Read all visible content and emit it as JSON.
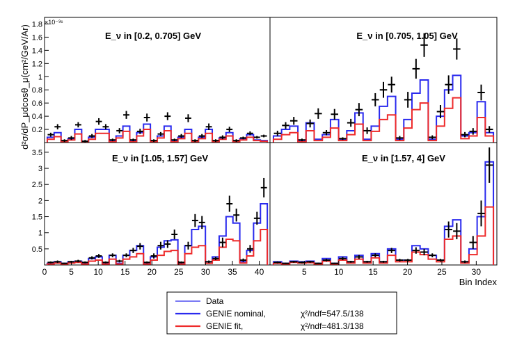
{
  "colors": {
    "data": "#000000",
    "nominal": "#2a2aee",
    "fit": "#ee2a2a",
    "frame": "#000000"
  },
  "figure": {
    "y_axis_label": "d²σ/dP_μdcosθ_μ(cm²/GeV/Ar)",
    "y_exponent_label": "×10⁻³⁶",
    "x_axis_label": "Bin Index"
  },
  "legend": {
    "data_label": "Data",
    "nominal_label": "GENIE nominal,",
    "nominal_chi2": "χ²/ndf=547.5/138",
    "fit_label": "GENIE fit,",
    "fit_chi2": "χ²/ndf=481.3/138"
  },
  "chart_data": [
    {
      "type": "step",
      "title": "E_ν in [0.2, 0.705] GeV",
      "xlim": [
        0,
        41
      ],
      "ylim": [
        0,
        1.9
      ],
      "yticks": [
        0.2,
        0.4,
        0.6,
        0.8,
        1.0,
        1.2,
        1.4,
        1.6,
        1.8
      ],
      "ytick_labels": [
        "0.2",
        "0.4",
        "0.6",
        "0.8",
        "1",
        "1.2",
        "1.4",
        "1.6",
        "1.8"
      ],
      "xticks": [],
      "xtick_labels": [],
      "nominal": [
        0.08,
        0.15,
        0.02,
        0.06,
        0.2,
        0.02,
        0.08,
        0.2,
        0.2,
        0.02,
        0.1,
        0.25,
        0.02,
        0.15,
        0.28,
        0.02,
        0.1,
        0.25,
        0.02,
        0.08,
        0.2,
        0.02,
        0.08,
        0.2,
        0.02,
        0.07,
        0.15,
        0.02,
        0.06,
        0.12,
        0.04,
        0.03
      ],
      "fit": [
        0.05,
        0.09,
        0.01,
        0.04,
        0.13,
        0.01,
        0.05,
        0.14,
        0.14,
        0.01,
        0.07,
        0.17,
        0.01,
        0.1,
        0.2,
        0.01,
        0.07,
        0.18,
        0.01,
        0.06,
        0.14,
        0.01,
        0.06,
        0.14,
        0.01,
        0.05,
        0.1,
        0.01,
        0.04,
        0.08,
        0.03,
        0.02
      ],
      "data": [
        0.12,
        0.24,
        0.03,
        0.07,
        0.27,
        0.02,
        0.1,
        0.32,
        0.24,
        0.04,
        0.18,
        0.42,
        0.04,
        0.17,
        0.38,
        0.03,
        0.13,
        0.4,
        0.04,
        0.1,
        0.37,
        0.03,
        0.1,
        0.24,
        0.03,
        0.08,
        0.2,
        0.03,
        0.07,
        0.14,
        0.08,
        0.1
      ],
      "errors": [
        0.03,
        0.04,
        0.02,
        0.03,
        0.04,
        0.02,
        0.03,
        0.05,
        0.04,
        0.02,
        0.04,
        0.06,
        0.02,
        0.04,
        0.06,
        0.02,
        0.03,
        0.06,
        0.02,
        0.03,
        0.06,
        0.02,
        0.03,
        0.05,
        0.02,
        0.03,
        0.04,
        0.02,
        0.02,
        0.03,
        0.02,
        0.02
      ]
    },
    {
      "type": "step",
      "title": "E_ν in [0.705, 1.05] GeV",
      "xlim": [
        0,
        33
      ],
      "ylim": [
        0,
        1.9
      ],
      "yticks": [],
      "ytick_labels": [],
      "xticks": [],
      "xtick_labels": [],
      "nominal": [
        0.1,
        0.2,
        0.25,
        0.02,
        0.3,
        0.05,
        0.12,
        0.35,
        0.05,
        0.18,
        0.45,
        0.05,
        0.25,
        0.55,
        0.7,
        0.05,
        0.35,
        0.75,
        0.95,
        0.05,
        0.4,
        0.8,
        1.02,
        0.1,
        0.15,
        0.62,
        0.15
      ],
      "fit": [
        0.05,
        0.12,
        0.15,
        0.01,
        0.18,
        0.03,
        0.08,
        0.22,
        0.03,
        0.12,
        0.28,
        0.03,
        0.17,
        0.35,
        0.42,
        0.03,
        0.22,
        0.5,
        0.6,
        0.03,
        0.25,
        0.52,
        0.68,
        0.06,
        0.1,
        0.38,
        0.1
      ],
      "data": [
        0.14,
        0.26,
        0.33,
        0.04,
        0.29,
        0.44,
        0.15,
        0.43,
        0.06,
        0.3,
        0.5,
        0.18,
        0.65,
        0.8,
        0.88,
        0.07,
        0.65,
        1.12,
        1.48,
        0.08,
        0.47,
        0.88,
        1.42,
        0.12,
        0.17,
        0.76,
        0.2
      ],
      "errors": [
        0.04,
        0.05,
        0.06,
        0.02,
        0.06,
        0.08,
        0.04,
        0.08,
        0.02,
        0.06,
        0.1,
        0.05,
        0.1,
        0.12,
        0.12,
        0.03,
        0.12,
        0.15,
        0.18,
        0.03,
        0.1,
        0.14,
        0.16,
        0.04,
        0.05,
        0.12,
        0.05
      ]
    },
    {
      "type": "step",
      "title": "E_ν in [1.05, 1.57] GeV",
      "xlim": [
        0,
        42
      ],
      "ylim": [
        0,
        3.8
      ],
      "yticks": [
        0.5,
        1.0,
        1.5,
        2.0,
        2.5,
        3.0,
        3.5
      ],
      "ytick_labels": [
        "0.5",
        "1",
        "1.5",
        "2",
        "2.5",
        "3",
        "3.5"
      ],
      "xticks": [
        0,
        5,
        10,
        15,
        20,
        25,
        30,
        35,
        40
      ],
      "xtick_labels": [
        "0",
        "5",
        "10",
        "15",
        "20",
        "25",
        "30",
        "35",
        "40"
      ],
      "nominal": [
        0.05,
        0.1,
        0.05,
        0.1,
        0.12,
        0.05,
        0.2,
        0.25,
        0.05,
        0.3,
        0.05,
        0.3,
        0.45,
        0.6,
        0.05,
        0.25,
        0.55,
        0.75,
        0.78,
        0.05,
        0.6,
        1.1,
        1.2,
        0.1,
        0.25,
        0.9,
        1.5,
        1.3,
        0.1,
        0.45,
        1.3,
        1.9
      ],
      "fit": [
        0.03,
        0.06,
        0.03,
        0.06,
        0.08,
        0.03,
        0.12,
        0.15,
        0.03,
        0.18,
        0.03,
        0.18,
        0.25,
        0.35,
        0.03,
        0.15,
        0.3,
        0.42,
        0.45,
        0.03,
        0.35,
        0.55,
        0.6,
        0.05,
        0.15,
        0.55,
        0.8,
        0.75,
        0.06,
        0.28,
        0.75,
        1.1
      ],
      "data": [
        0.08,
        0.1,
        0.05,
        0.1,
        0.12,
        0.08,
        0.22,
        0.28,
        0.08,
        0.3,
        0.12,
        0.3,
        0.45,
        0.58,
        0.08,
        0.28,
        0.6,
        0.65,
        0.95,
        0.08,
        0.6,
        1.38,
        1.32,
        0.1,
        0.2,
        0.7,
        1.9,
        1.55,
        0.15,
        0.5,
        1.45,
        2.4
      ],
      "errors": [
        0.03,
        0.04,
        0.02,
        0.03,
        0.04,
        0.03,
        0.05,
        0.06,
        0.03,
        0.06,
        0.04,
        0.06,
        0.08,
        0.1,
        0.03,
        0.08,
        0.12,
        0.12,
        0.15,
        0.03,
        0.12,
        0.2,
        0.2,
        0.04,
        0.05,
        0.15,
        0.25,
        0.2,
        0.05,
        0.12,
        0.2,
        0.3
      ]
    },
    {
      "type": "step",
      "title": "E_ν in [1.57, 4] GeV",
      "xlim": [
        0,
        33
      ],
      "ylim": [
        0,
        3.8
      ],
      "yticks": [],
      "ytick_labels": [],
      "xticks": [
        5,
        10,
        15,
        20,
        25,
        30
      ],
      "xtick_labels": [
        "5",
        "10",
        "15",
        "20",
        "25",
        "30"
      ],
      "nominal": [
        0.1,
        0.05,
        0.12,
        0.1,
        0.12,
        0.05,
        0.2,
        0.05,
        0.25,
        0.1,
        0.3,
        0.1,
        0.35,
        0.1,
        0.5,
        0.15,
        0.15,
        0.6,
        0.5,
        0.3,
        0.15,
        1.2,
        1.4,
        0.1,
        0.5,
        1.5,
        3.2
      ],
      "fit": [
        0.05,
        0.03,
        0.08,
        0.06,
        0.07,
        0.03,
        0.12,
        0.03,
        0.15,
        0.06,
        0.18,
        0.06,
        0.22,
        0.06,
        0.3,
        0.1,
        0.1,
        0.4,
        0.32,
        0.18,
        0.1,
        0.8,
        0.9,
        0.06,
        0.32,
        0.9,
        1.8
      ],
      "data": [
        0.08,
        0.05,
        0.1,
        0.08,
        0.1,
        0.05,
        0.15,
        0.05,
        0.2,
        0.1,
        0.25,
        0.1,
        0.3,
        0.1,
        0.45,
        0.15,
        0.15,
        0.45,
        0.4,
        0.3,
        0.15,
        1.1,
        1.05,
        0.1,
        0.7,
        1.6,
        3.1
      ],
      "errors": [
        0.03,
        0.02,
        0.03,
        0.03,
        0.03,
        0.02,
        0.04,
        0.02,
        0.05,
        0.03,
        0.06,
        0.03,
        0.06,
        0.03,
        0.08,
        0.04,
        0.04,
        0.1,
        0.1,
        0.06,
        0.04,
        0.25,
        0.25,
        0.04,
        0.2,
        0.4,
        0.55
      ]
    }
  ]
}
